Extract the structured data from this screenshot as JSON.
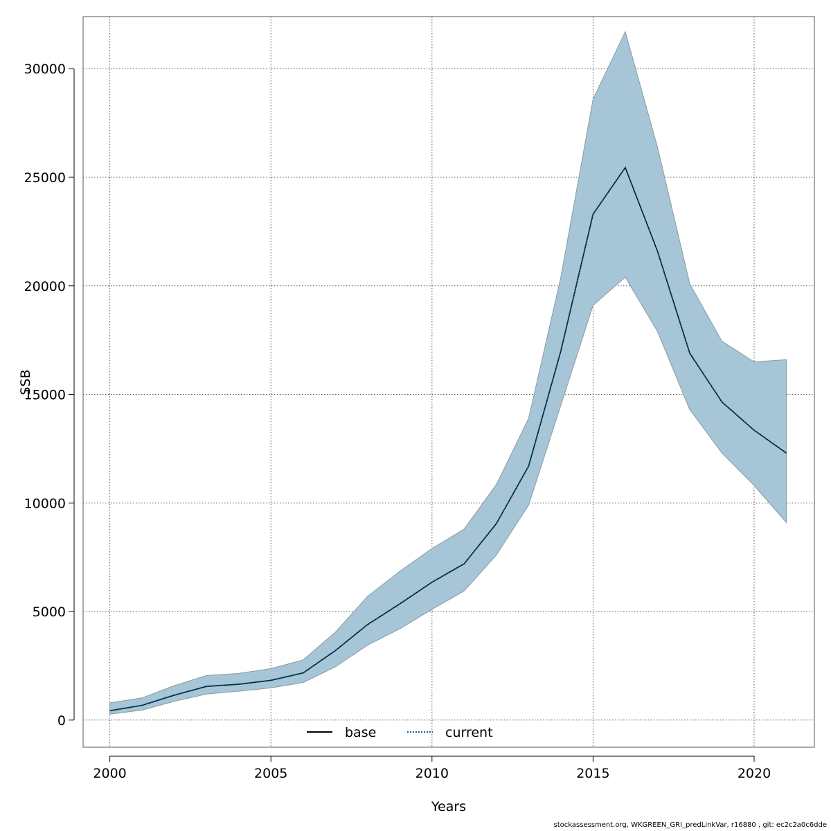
{
  "chart_data": {
    "type": "line",
    "title": "",
    "xlabel": "Years",
    "ylabel": "SSB",
    "xlim": [
      1999.17,
      2021.87
    ],
    "ylim": [
      -1250,
      32400
    ],
    "x_ticks": [
      2000,
      2005,
      2010,
      2015,
      2020
    ],
    "x_tick_labels": [
      "2000",
      "2005",
      "2010",
      "2015",
      "2020"
    ],
    "y_ticks": [
      0,
      5000,
      10000,
      15000,
      20000,
      25000,
      30000
    ],
    "y_tick_labels": [
      "0",
      "5000",
      "10000",
      "15000",
      "20000",
      "25000",
      "30000"
    ],
    "grid": true,
    "legend_position": "bottom-center",
    "x": [
      2000,
      2001,
      2002,
      2003,
      2004,
      2005,
      2006,
      2007,
      2008,
      2009,
      2010,
      2011,
      2012,
      2013,
      2014,
      2015,
      2016,
      2017,
      2018,
      2019,
      2020,
      2021
    ],
    "series": [
      {
        "name": "base",
        "line_style": "solid",
        "color": "#000000",
        "values": [
          430,
          680,
          1150,
          1550,
          1650,
          1830,
          2170,
          3200,
          4400,
          5350,
          6350,
          7200,
          9050,
          11700,
          17000,
          23300,
          25450,
          21600,
          16900,
          14650,
          13350,
          12300
        ]
      },
      {
        "name": "current",
        "line_style": "dotted",
        "color": "#0b5f8c",
        "values": [
          430,
          680,
          1150,
          1550,
          1650,
          1830,
          2170,
          3200,
          4400,
          5350,
          6350,
          7200,
          9050,
          11700,
          17000,
          23300,
          25450,
          21600,
          16900,
          14650,
          13350,
          12300
        ]
      }
    ],
    "confidence_band": {
      "color": "#a6c5d7",
      "edge_color": "#8a9aa3",
      "lower": [
        270,
        460,
        860,
        1200,
        1330,
        1480,
        1730,
        2450,
        3450,
        4200,
        5100,
        5950,
        7600,
        9900,
        14500,
        19100,
        20400,
        17900,
        14300,
        12300,
        10800,
        9100
      ],
      "upper": [
        790,
        1020,
        1590,
        2050,
        2150,
        2370,
        2770,
        4050,
        5700,
        6850,
        7900,
        8800,
        10850,
        13900,
        20400,
        28600,
        31700,
        26400,
        20100,
        17450,
        16500,
        16600
      ]
    }
  },
  "legend": {
    "items": [
      {
        "label": "base",
        "style": "solid"
      },
      {
        "label": "current",
        "style": "dotted"
      }
    ]
  },
  "footer": {
    "text": "stockassessment.org, WKGREEN_GRI_predLinkVar, r16880 , git: ec2c2a0c6dde"
  }
}
